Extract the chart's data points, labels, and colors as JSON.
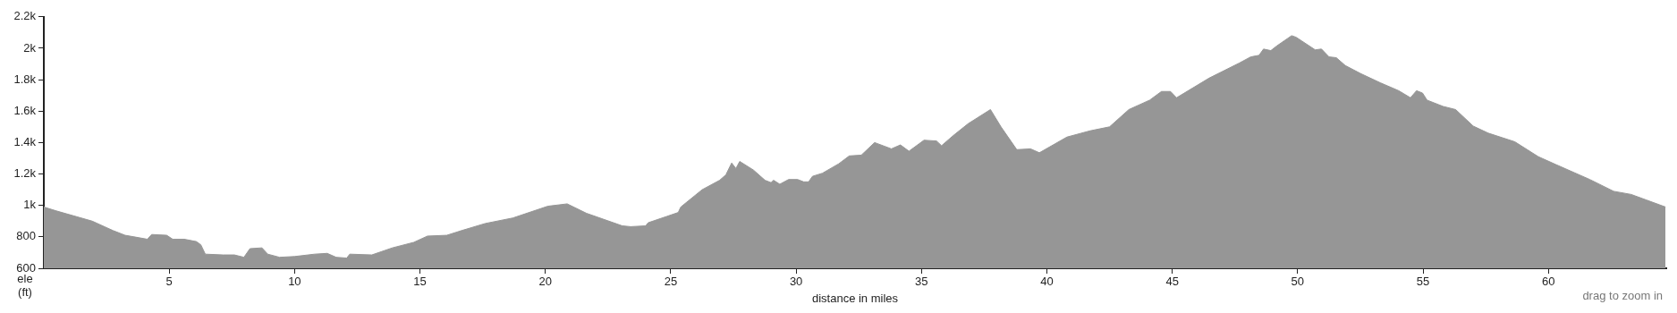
{
  "chart_data": {
    "type": "area",
    "xlabel": "distance in miles",
    "ylabel": "ele (ft)",
    "annotations": [
      "drag to zoom in"
    ],
    "grid": false,
    "legend": false,
    "xlim": [
      0,
      64.7
    ],
    "ylim": [
      600,
      2200
    ],
    "xticks": [
      5,
      10,
      15,
      20,
      25,
      30,
      35,
      40,
      45,
      50,
      55,
      60
    ],
    "yticks": [
      600,
      800,
      {
        "value": 1000,
        "label": "1k"
      },
      {
        "value": 1200,
        "label": "1.2k"
      },
      {
        "value": 1400,
        "label": "1.4k"
      },
      {
        "value": 1600,
        "label": "1.6k"
      },
      {
        "value": 1800,
        "label": "1.8k"
      },
      {
        "value": 2000,
        "label": "2k"
      },
      {
        "value": 2200,
        "label": "2.2k"
      }
    ],
    "series": [
      {
        "color": "#969696",
        "x": [
          0,
          0.5,
          1.93,
          2.76,
          3.24,
          3.6,
          4.13,
          4.3,
          4.9,
          5.14,
          5.6,
          6.08,
          6.26,
          6.44,
          7.15,
          7.6,
          7.98,
          8.22,
          8.7,
          8.93,
          9.4,
          10.0,
          10.8,
          11.3,
          11.66,
          12.08,
          12.2,
          13.08,
          13.9,
          14.75,
          15.3,
          16.07,
          16.66,
          17.6,
          18.7,
          20.1,
          20.87,
          21.64,
          23.07,
          23.4,
          24.0,
          24.1,
          24.84,
          25.3,
          25.4,
          26.25,
          26.95,
          27.2,
          27.43,
          27.6,
          27.75,
          28.3,
          28.76,
          29.0,
          29.1,
          29.35,
          29.7,
          30.06,
          30.3,
          30.5,
          30.65,
          31.05,
          31.7,
          32.12,
          32.6,
          33.13,
          33.8,
          34.16,
          34.5,
          35.1,
          35.6,
          35.8,
          36.27,
          36.86,
          37.75,
          38.17,
          38.8,
          39.35,
          39.7,
          40.8,
          41.73,
          42.5,
          43.27,
          44.1,
          44.57,
          44.93,
          45.17,
          46.47,
          47.66,
          48.13,
          48.46,
          48.64,
          48.93,
          49.17,
          49.76,
          49.94,
          50.7,
          50.95,
          51.25,
          51.54,
          51.9,
          52.5,
          53.3,
          54.03,
          54.5,
          54.74,
          54.98,
          55.16,
          55.8,
          56.3,
          57.0,
          57.6,
          58.66,
          59.6,
          60.3,
          61.65,
          62.6,
          63.3,
          63.9,
          64.67
        ],
        "values": [
          990,
          965,
          900,
          840,
          810,
          800,
          785,
          815,
          810,
          785,
          785,
          770,
          750,
          690,
          685,
          685,
          670,
          725,
          730,
          690,
          670,
          675,
          690,
          695,
          670,
          665,
          690,
          685,
          730,
          765,
          805,
          810,
          840,
          885,
          920,
          995,
          1010,
          950,
          870,
          865,
          870,
          890,
          930,
          955,
          990,
          1100,
          1160,
          1195,
          1270,
          1235,
          1280,
          1225,
          1160,
          1145,
          1160,
          1135,
          1165,
          1165,
          1150,
          1150,
          1185,
          1205,
          1265,
          1315,
          1320,
          1400,
          1360,
          1385,
          1345,
          1415,
          1410,
          1380,
          1445,
          1520,
          1610,
          1500,
          1355,
          1360,
          1335,
          1435,
          1475,
          1500,
          1610,
          1670,
          1725,
          1725,
          1685,
          1810,
          1905,
          1945,
          1955,
          1995,
          1985,
          2015,
          2080,
          2070,
          1990,
          1995,
          1945,
          1940,
          1890,
          1840,
          1780,
          1730,
          1685,
          1730,
          1715,
          1670,
          1630,
          1610,
          1505,
          1460,
          1405,
          1310,
          1260,
          1165,
          1090,
          1070,
          1035,
          990
        ]
      }
    ]
  }
}
